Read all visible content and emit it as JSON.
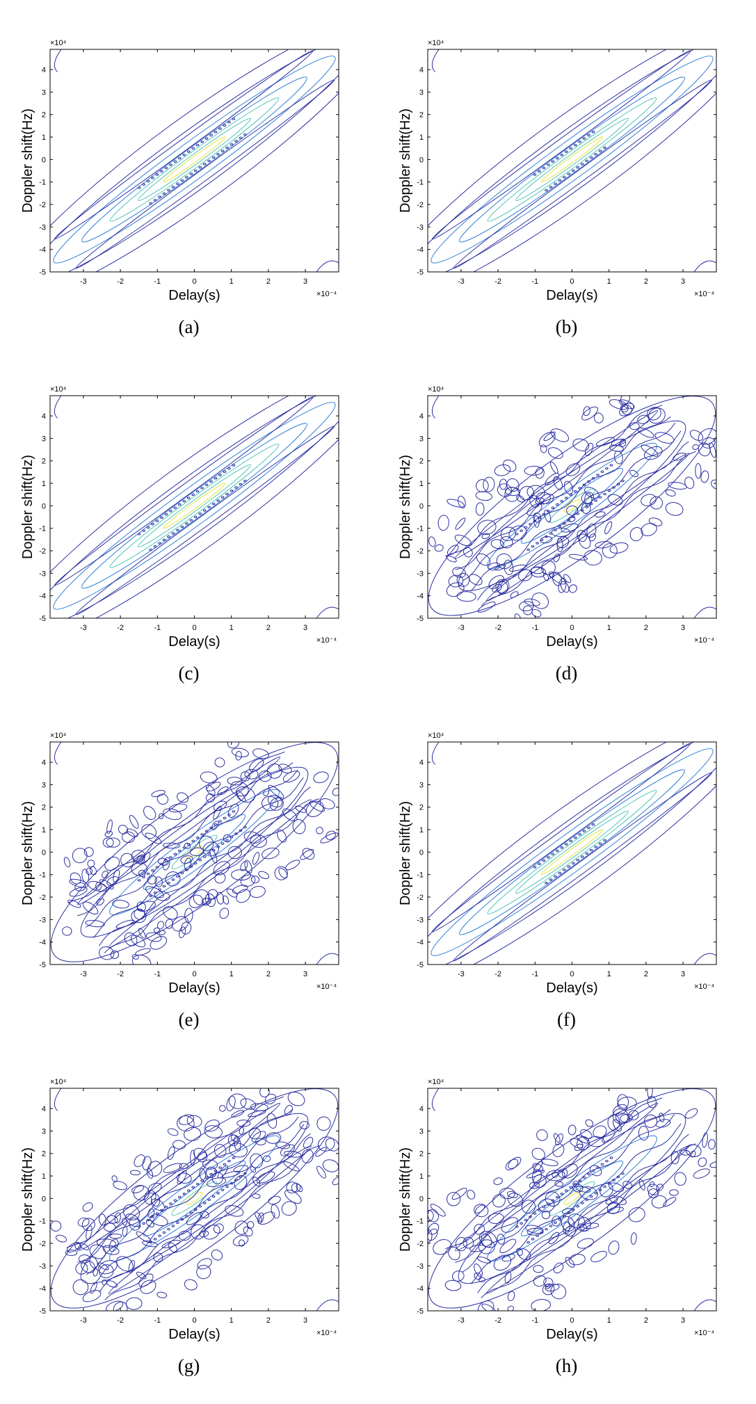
{
  "figure": {
    "panels": [
      {
        "caption": "(a)",
        "pattern": "clean",
        "seed": 11
      },
      {
        "caption": "(b)",
        "pattern": "clean-sparse",
        "seed": 23
      },
      {
        "caption": "(c)",
        "pattern": "clean",
        "seed": 37
      },
      {
        "caption": "(d)",
        "pattern": "noisy",
        "seed": 41
      },
      {
        "caption": "(e)",
        "pattern": "noisy",
        "seed": 53
      },
      {
        "caption": "(f)",
        "pattern": "clean-sparse",
        "seed": 67
      },
      {
        "caption": "(g)",
        "pattern": "noisy",
        "seed": 71
      },
      {
        "caption": "(h)",
        "pattern": "noisy",
        "seed": 83
      }
    ]
  },
  "chart_data": [
    {
      "type": "contour",
      "title": "",
      "xlabel": "Delay(s)",
      "ylabel": "Doppler shift(Hz)",
      "x_multiplier": "×10⁻⁴",
      "y_multiplier": "×10⁴",
      "xlim": [
        -3.9,
        3.9
      ],
      "ylim": [
        -5,
        4.9
      ],
      "xticks": [
        -3,
        -2,
        -1,
        0,
        1,
        2,
        3
      ],
      "yticks": [
        -5,
        -4,
        -3,
        -2,
        -1,
        0,
        1,
        2,
        3,
        4
      ],
      "ridge_slope_hz_per_s": 120000000.0,
      "peak": [
        0,
        0
      ]
    },
    {
      "type": "contour",
      "title": "",
      "xlabel": "Delay(s)",
      "ylabel": "Doppler shift(Hz)",
      "x_multiplier": "×10⁻⁴",
      "y_multiplier": "×10⁴",
      "xlim": [
        -3.9,
        3.9
      ],
      "ylim": [
        -5,
        4.9
      ],
      "xticks": [
        -3,
        -2,
        -1,
        0,
        1,
        2,
        3
      ],
      "yticks": [
        -5,
        -4,
        -3,
        -2,
        -1,
        0,
        1,
        2,
        3,
        4
      ],
      "ridge_slope_hz_per_s": 120000000.0,
      "peak": [
        0,
        0
      ]
    },
    {
      "type": "contour",
      "title": "",
      "xlabel": "Delay(s)",
      "ylabel": "Doppler shift(Hz)",
      "x_multiplier": "×10⁻⁴",
      "y_multiplier": "×10⁴",
      "xlim": [
        -3.9,
        3.9
      ],
      "ylim": [
        -5,
        4.9
      ],
      "xticks": [
        -3,
        -2,
        -1,
        0,
        1,
        2,
        3
      ],
      "yticks": [
        -5,
        -4,
        -3,
        -2,
        -1,
        0,
        1,
        2,
        3,
        4
      ],
      "ridge_slope_hz_per_s": 120000000.0,
      "peak": [
        0,
        0
      ]
    },
    {
      "type": "contour",
      "title": "",
      "xlabel": "Delay(s)",
      "ylabel": "Doppler shift(Hz)",
      "x_multiplier": "×10⁻⁴",
      "y_multiplier": "×10⁴",
      "xlim": [
        -3.9,
        3.9
      ],
      "ylim": [
        -5,
        4.9
      ],
      "xticks": [
        -3,
        -2,
        -1,
        0,
        1,
        2,
        3
      ],
      "yticks": [
        -5,
        -4,
        -3,
        -2,
        -1,
        0,
        1,
        2,
        3,
        4
      ],
      "ridge_slope_hz_per_s": 120000000.0,
      "peak": [
        0,
        0
      ]
    },
    {
      "type": "contour",
      "title": "",
      "xlabel": "Delay(s)",
      "ylabel": "Doppler shift(Hz)",
      "x_multiplier": "×10⁻⁴",
      "y_multiplier": "×10⁴",
      "xlim": [
        -3.9,
        3.9
      ],
      "ylim": [
        -5,
        4.9
      ],
      "xticks": [
        -3,
        -2,
        -1,
        0,
        1,
        2,
        3
      ],
      "yticks": [
        -5,
        -4,
        -3,
        -2,
        -1,
        0,
        1,
        2,
        3,
        4
      ],
      "ridge_slope_hz_per_s": 120000000.0,
      "peak": [
        0,
        0
      ]
    },
    {
      "type": "contour",
      "title": "",
      "xlabel": "Delay(s)",
      "ylabel": "Doppler shift(Hz)",
      "x_multiplier": "×10⁻⁴",
      "y_multiplier": "×10⁴",
      "xlim": [
        -3.9,
        3.9
      ],
      "ylim": [
        -5,
        4.9
      ],
      "xticks": [
        -3,
        -2,
        -1,
        0,
        1,
        2,
        3
      ],
      "yticks": [
        -5,
        -4,
        -3,
        -2,
        -1,
        0,
        1,
        2,
        3,
        4
      ],
      "ridge_slope_hz_per_s": 120000000.0,
      "peak": [
        0,
        0
      ]
    },
    {
      "type": "contour",
      "title": "",
      "xlabel": "Delay(s)",
      "ylabel": "Doppler shift(Hz)",
      "x_multiplier": "×10⁻⁴",
      "y_multiplier": "×10⁴",
      "xlim": [
        -3.9,
        3.9
      ],
      "ylim": [
        -5,
        4.9
      ],
      "xticks": [
        -3,
        -2,
        -1,
        0,
        1,
        2,
        3
      ],
      "yticks": [
        -5,
        -4,
        -3,
        -2,
        -1,
        0,
        1,
        2,
        3,
        4
      ],
      "ridge_slope_hz_per_s": 120000000.0,
      "peak": [
        0,
        0
      ]
    },
    {
      "type": "contour",
      "title": "",
      "xlabel": "Delay(s)",
      "ylabel": "Doppler shift(Hz)",
      "x_multiplier": "×10⁻⁴",
      "y_multiplier": "×10⁴",
      "xlim": [
        -3.9,
        3.9
      ],
      "ylim": [
        -5,
        4.9
      ],
      "xticks": [
        -3,
        -2,
        -1,
        0,
        1,
        2,
        3
      ],
      "yticks": [
        -5,
        -4,
        -3,
        -2,
        -1,
        0,
        1,
        2,
        3,
        4
      ],
      "ridge_slope_hz_per_s": 120000000.0,
      "peak": [
        0,
        0
      ]
    }
  ],
  "colors": {
    "contour_outer": "#2b2fa0",
    "contour_mid": "#2f7fd6",
    "contour_inner": "#4fc4b8",
    "contour_peak": "#e8e23a",
    "axis": "#000000"
  }
}
